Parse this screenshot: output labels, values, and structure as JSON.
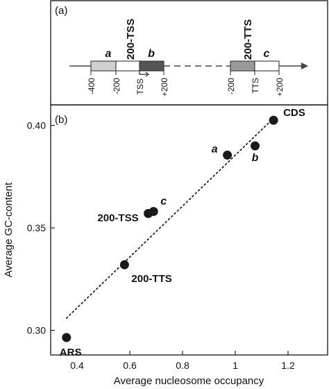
{
  "panel_a": {
    "label": "(a)",
    "region_labels": {
      "a": "a",
      "b": "b",
      "c": "c",
      "tss_region": "200-TSS",
      "tts_region": "200-TTS"
    },
    "tss_ticks": [
      "-400",
      "-200",
      "TSS",
      "+200"
    ],
    "tts_ticks": [
      "-200",
      "TTS",
      "+200"
    ],
    "colors": {
      "region_a": "#d0d0d0",
      "region_gap": "#ffffff",
      "region_b": "#555555",
      "region_tts_left": "#9a9a9a",
      "region_c": "#ffffff",
      "line": "#444444"
    }
  },
  "panel_b": {
    "label": "(b)"
  },
  "chart_data": {
    "type": "scatter",
    "xlabel": "Average nucleosome occupancy",
    "ylabel": "Average GC-content",
    "xlim": [
      0.3,
      1.35
    ],
    "ylim": [
      0.288,
      0.41
    ],
    "xticks": [
      0.4,
      0.6,
      0.8,
      1.0,
      1.2
    ],
    "xtick_labels": [
      "0.4",
      "0.6",
      "0.8",
      "1",
      "1.2"
    ],
    "yticks": [
      0.3,
      0.35,
      0.4
    ],
    "ytick_labels": [
      "0.30",
      "0.35",
      "0.40"
    ],
    "points": [
      {
        "x": 0.36,
        "y": 0.2965,
        "label": "ARS",
        "italic": false
      },
      {
        "x": 0.58,
        "y": 0.332,
        "label": "200-TTS",
        "italic": false
      },
      {
        "x": 0.67,
        "y": 0.357,
        "label": "200-TSS",
        "italic": false
      },
      {
        "x": 0.69,
        "y": 0.358,
        "label": "c",
        "italic": true
      },
      {
        "x": 0.97,
        "y": 0.3855,
        "label": "a",
        "italic": true
      },
      {
        "x": 1.075,
        "y": 0.39,
        "label": "b",
        "italic": true
      },
      {
        "x": 1.145,
        "y": 0.4025,
        "label": "CDS",
        "italic": false
      }
    ],
    "trendline": {
      "x": [
        0.36,
        1.125
      ],
      "y": [
        0.306,
        0.401
      ],
      "style": "dotted"
    },
    "grid": false,
    "marker_color": "#1a1a1a"
  }
}
